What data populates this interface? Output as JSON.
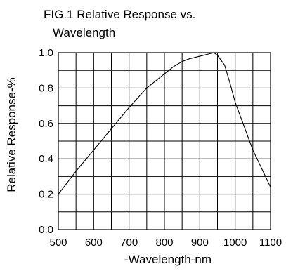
{
  "chart_data": {
    "type": "line",
    "title_lines": [
      "FIG.1 Relative Response vs.",
      "Wavelength"
    ],
    "xlabel": "-Wavelength-nm",
    "ylabel": "Relative Response-%",
    "xlim": [
      500,
      1100
    ],
    "ylim": [
      0.0,
      1.0
    ],
    "x_ticks": [
      500,
      600,
      700,
      800,
      900,
      1000,
      1100
    ],
    "x_tick_labels": [
      "500",
      "600",
      "700",
      "800",
      "900",
      "1000",
      "1100"
    ],
    "y_ticks": [
      0.0,
      0.2,
      0.4,
      0.6,
      0.8,
      1.0
    ],
    "y_tick_labels": [
      "0.0",
      "0.2",
      "0.4",
      "0.6",
      "0.8",
      "1.0"
    ],
    "x_grid_step": 50,
    "y_grid_step": 0.1,
    "grid": true,
    "series": [
      {
        "x": [
          500,
          550,
          600,
          650,
          700,
          750,
          800,
          825,
          850,
          870,
          900,
          930,
          940,
          950,
          970,
          985,
          1000,
          1050,
          1100
        ],
        "y": [
          0.2,
          0.33,
          0.45,
          0.57,
          0.69,
          0.8,
          0.88,
          0.92,
          0.95,
          0.965,
          0.98,
          0.995,
          1.0,
          0.985,
          0.93,
          0.83,
          0.72,
          0.45,
          0.24
        ]
      }
    ]
  }
}
